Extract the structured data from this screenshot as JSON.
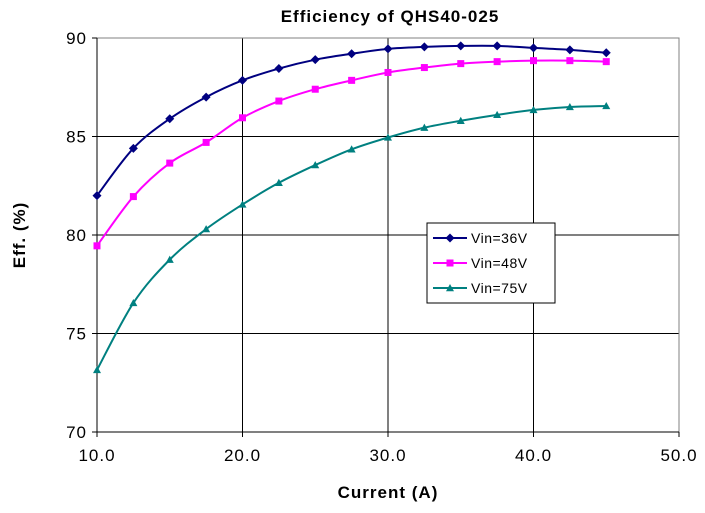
{
  "chart_data": {
    "type": "line",
    "title": "Efficiency of QHS40-025",
    "xlabel": "Current (A)",
    "ylabel": "Eff. (%)",
    "xlim": [
      10,
      50
    ],
    "ylim": [
      70,
      90
    ],
    "xticks": [
      10,
      20,
      30,
      40,
      50
    ],
    "xtick_labels": [
      "10.0",
      "20.0",
      "30.0",
      "40.0",
      "50.0"
    ],
    "yticks": [
      70,
      75,
      80,
      85,
      90
    ],
    "ytick_labels": [
      "70",
      "75",
      "80",
      "85",
      "90"
    ],
    "grid": true,
    "legend_position": "center-right",
    "x": [
      10,
      12.5,
      15,
      17.5,
      20,
      22.5,
      25,
      27.5,
      30,
      32.5,
      35,
      37.5,
      40,
      42.5,
      45
    ],
    "series": [
      {
        "name": "Vin=36V",
        "color": "#000080",
        "marker": "diamond",
        "values": [
          82.0,
          84.4,
          85.9,
          87.0,
          87.85,
          88.45,
          88.9,
          89.2,
          89.45,
          89.55,
          89.6,
          89.6,
          89.5,
          89.4,
          89.25
        ]
      },
      {
        "name": "Vin=48V",
        "color": "#FF00FF",
        "marker": "square",
        "values": [
          79.45,
          81.95,
          83.65,
          84.7,
          85.95,
          86.8,
          87.4,
          87.85,
          88.25,
          88.5,
          88.7,
          88.8,
          88.85,
          88.85,
          88.8
        ]
      },
      {
        "name": "Vin=75V",
        "color": "#008080",
        "marker": "triangle",
        "values": [
          73.15,
          76.55,
          78.75,
          80.3,
          81.55,
          82.65,
          83.55,
          84.35,
          84.95,
          85.45,
          85.8,
          86.1,
          86.35,
          86.5,
          86.55
        ]
      }
    ]
  }
}
